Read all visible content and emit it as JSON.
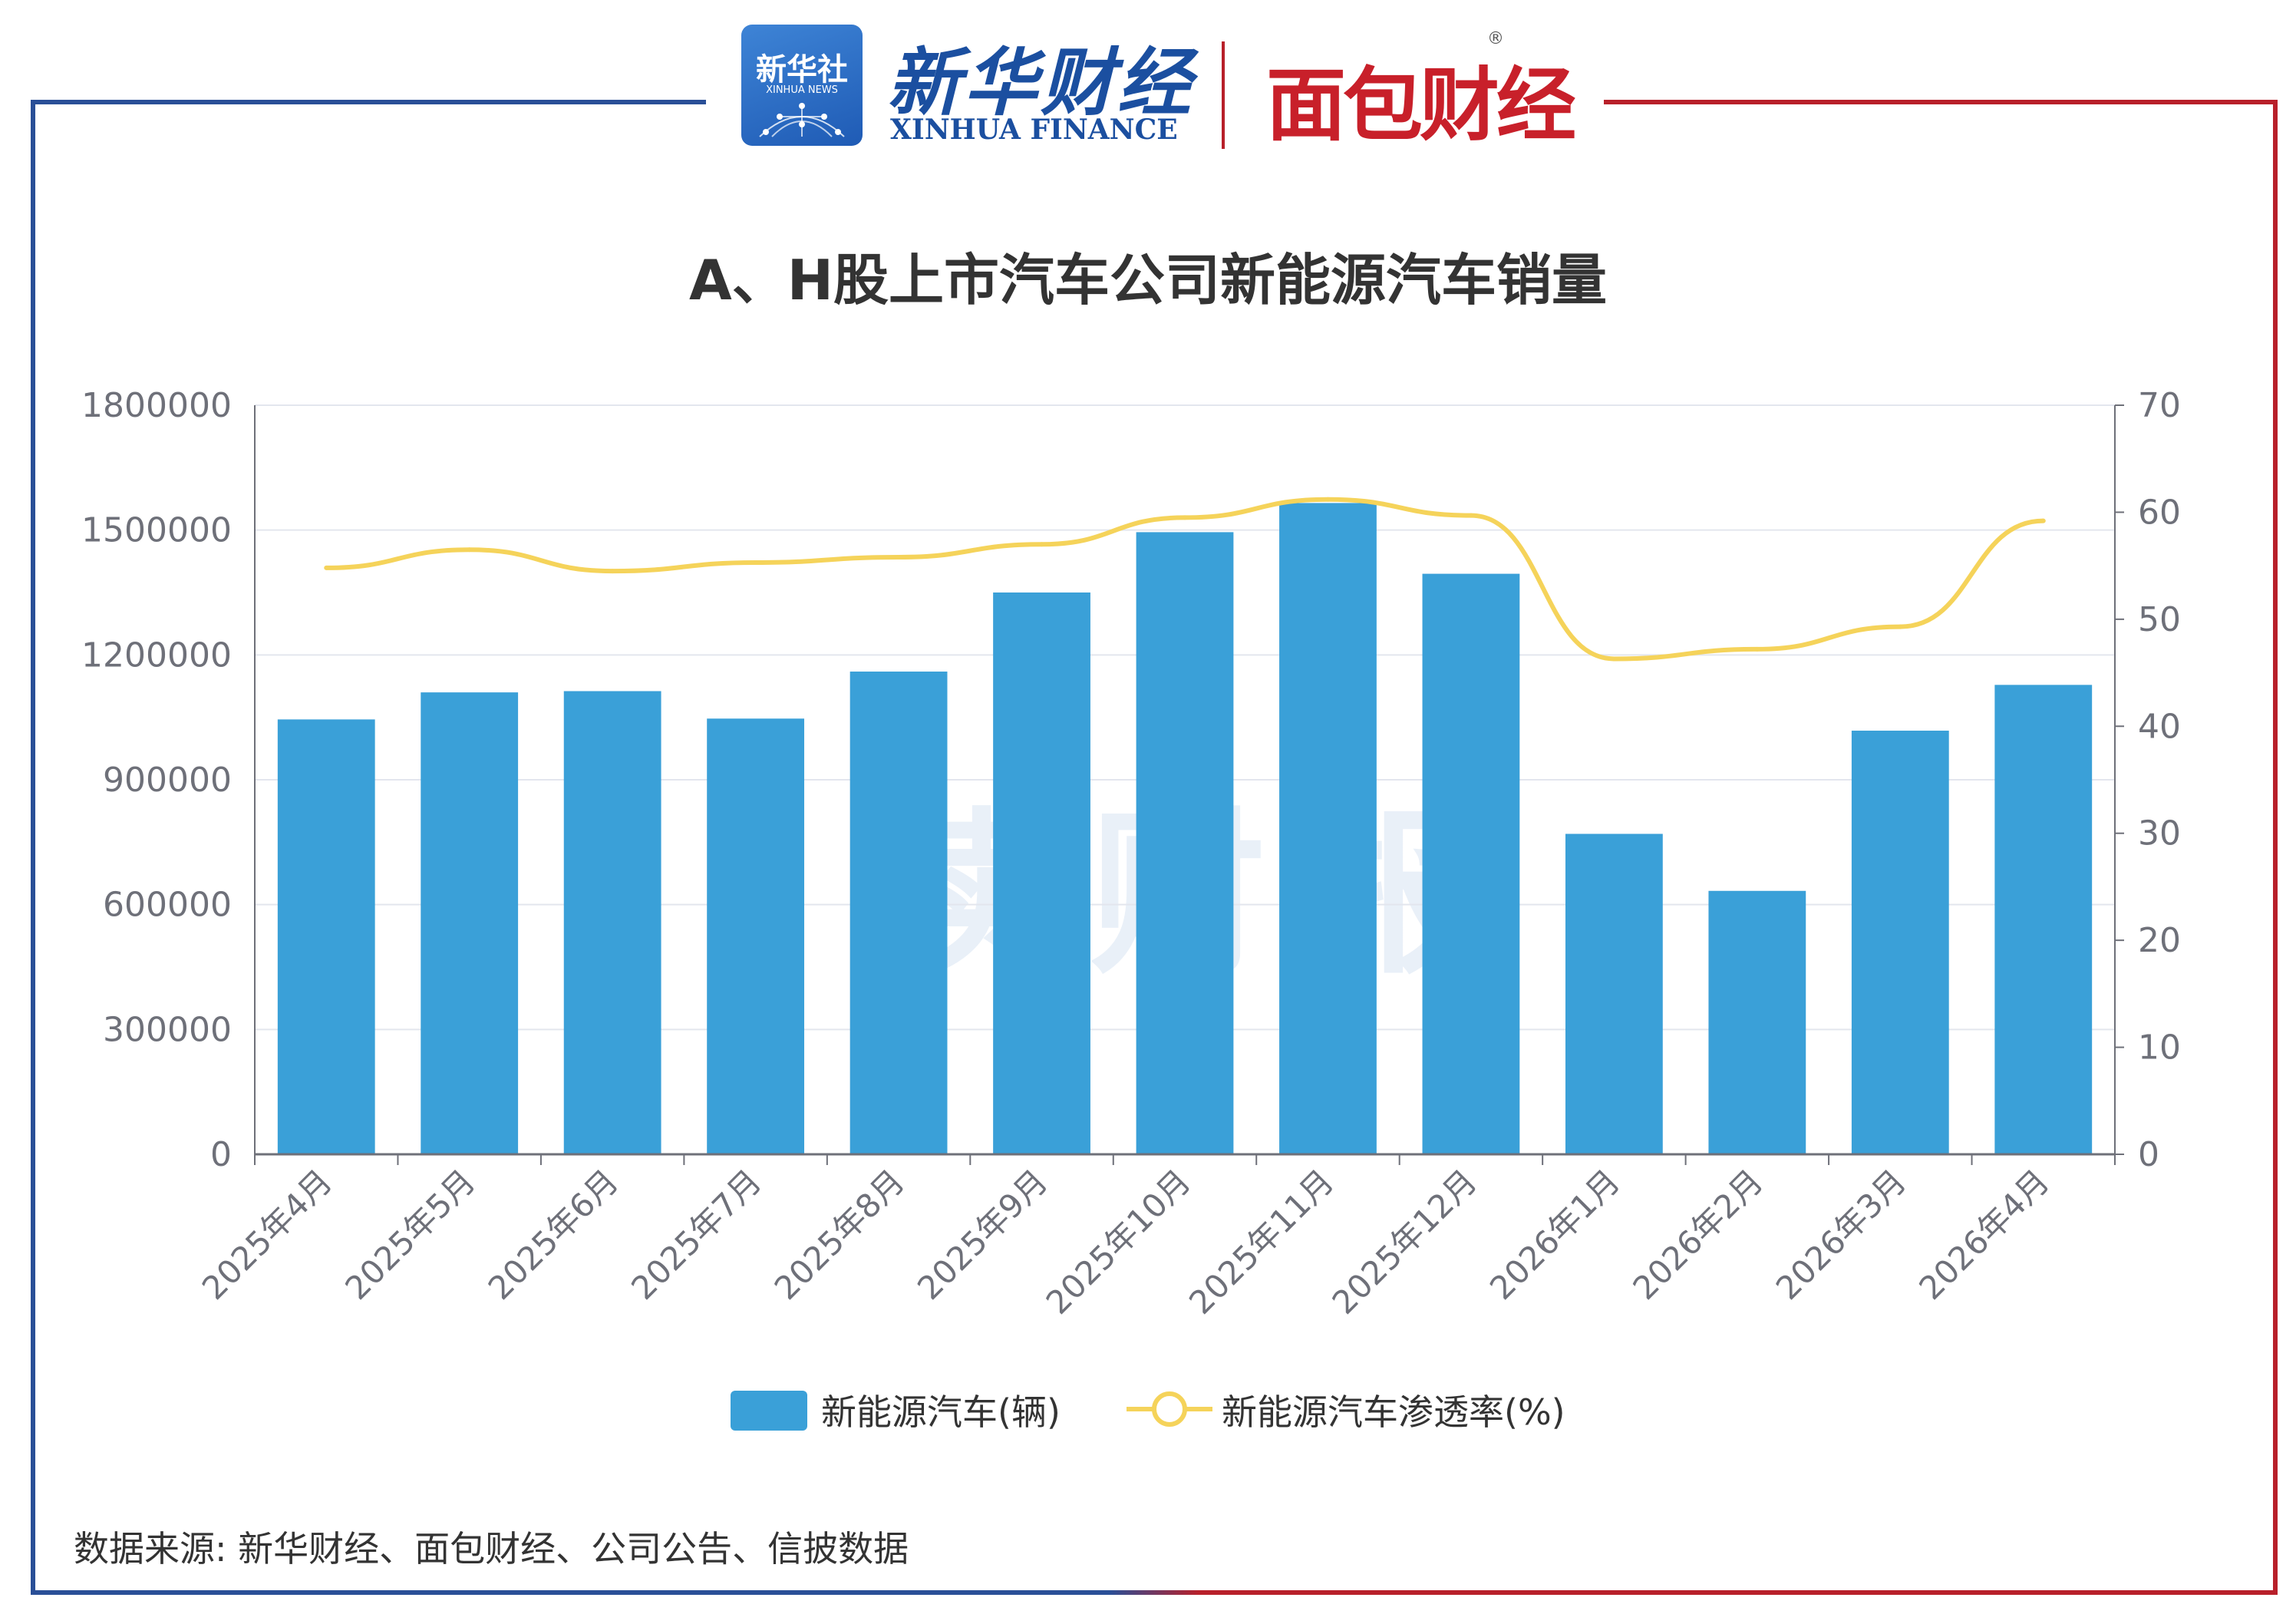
{
  "header": {
    "xinhua_badge": "新华社",
    "xinhua_badge_sub": "XINHUA NEWS",
    "finance_title": "新华财经",
    "finance_sub": "XINHUA FINANCE",
    "mianbao_logo": "面包财经",
    "registered_mark": "®"
  },
  "watermark": "读财报",
  "source_note": "数据来源: 新华财经、面包财经、公司公告、信披数据",
  "colors": {
    "bar": "#3aa0d8",
    "line": "#f5d35a",
    "grid": "#e3e6ee",
    "axis": "#6e7079",
    "frame_left": "#2a4f97",
    "frame_right": "#b8202a"
  },
  "chart_data": {
    "type": "bar",
    "title": "A、H股上市汽车公司新能源汽车销量",
    "categories": [
      "2025年4月",
      "2025年5月",
      "2025年6月",
      "2025年7月",
      "2025年8月",
      "2025年9月",
      "2025年10月",
      "2025年11月",
      "2025年12月",
      "2026年1月",
      "2026年2月",
      "2026年3月",
      "2026年4月"
    ],
    "series": [
      {
        "name": "新能源汽车(辆)",
        "type": "bar",
        "axis": "left",
        "values": [
          1045000,
          1110000,
          1113000,
          1047000,
          1160000,
          1350000,
          1495000,
          1565000,
          1395000,
          770000,
          633000,
          1018000,
          1128000
        ]
      },
      {
        "name": "新能源汽车渗透率(%)",
        "type": "line",
        "axis": "right",
        "values": [
          54.8,
          56.5,
          54.5,
          55.3,
          55.8,
          57.0,
          59.5,
          61.2,
          59.7,
          46.3,
          47.2,
          49.3,
          59.2
        ]
      }
    ],
    "y_left": {
      "min": 0,
      "max": 1800000,
      "ticks": [
        0,
        300000,
        600000,
        900000,
        1200000,
        1500000,
        1800000
      ]
    },
    "y_right": {
      "min": 0,
      "max": 70,
      "ticks": [
        0,
        10,
        20,
        30,
        40,
        50,
        60,
        70
      ]
    },
    "legend_position": "bottom-center",
    "grid": true
  }
}
